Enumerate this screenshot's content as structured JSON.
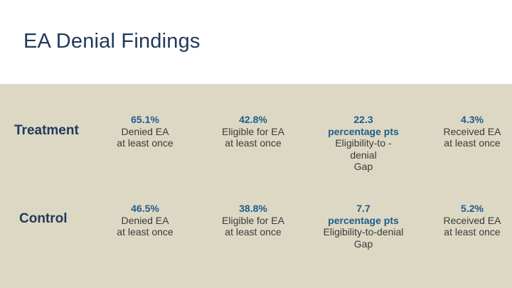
{
  "title": "EA Denial Findings",
  "colors": {
    "title_navy": "#21395a",
    "stat_blue": "#1f5c8b",
    "body_text": "#3a3a3a",
    "panel_beige": "#ddd8c4",
    "background": "#ffffff"
  },
  "table": {
    "rows": [
      {
        "label": "Treatment",
        "cells": [
          {
            "highlight": "65.1%",
            "lines": [
              "Denied EA",
              "at least once"
            ]
          },
          {
            "highlight": "42.8%",
            "lines": [
              "Eligible for EA",
              "at least once"
            ]
          },
          {
            "highlight": "22.3",
            "highlight2": "percentage pts",
            "lines": [
              "Eligibility-to -",
              "denial",
              "Gap"
            ]
          },
          {
            "highlight": "4.3%",
            "lines": [
              "Received EA",
              "at least once"
            ]
          }
        ]
      },
      {
        "label": "Control",
        "cells": [
          {
            "highlight": "46.5%",
            "lines": [
              "Denied EA",
              "at least once"
            ]
          },
          {
            "highlight": "38.8%",
            "lines": [
              "Eligible for EA",
              "at least once"
            ]
          },
          {
            "highlight": "7.7",
            "highlight2": "percentage pts",
            "lines": [
              "Eligibility-to-denial",
              "Gap"
            ]
          },
          {
            "highlight": "5.2%",
            "lines": [
              "Received EA",
              "at least once"
            ]
          }
        ]
      }
    ]
  }
}
